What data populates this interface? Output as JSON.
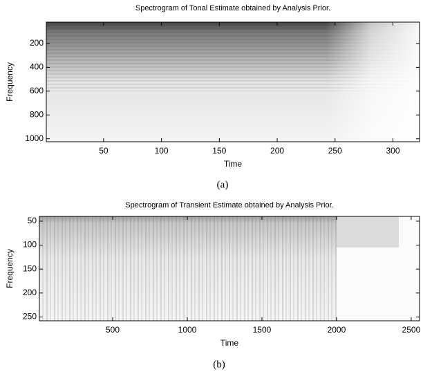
{
  "chart_data": [
    {
      "type": "spectrogram",
      "title": "Spectrogram of Tonal Estimate obtained by Analysis Prior.",
      "x_label": "Time",
      "y_label": "Frequency",
      "caption": "(a)",
      "xlim": [
        0.5,
        323
      ],
      "xticks": [
        50,
        100,
        150,
        200,
        250,
        300
      ],
      "ylim": [
        20,
        1025
      ],
      "yticks": [
        200,
        400,
        600,
        800,
        1000
      ],
      "y_reversed": true
    },
    {
      "type": "spectrogram",
      "title": "Spectrogram of Transient Estimate obtained by Analysis Prior.",
      "x_label": "Time",
      "y_label": "Frequency",
      "caption": "(b)",
      "xlim": [
        9,
        2556
      ],
      "xticks": [
        500,
        1000,
        1500,
        2000,
        2500
      ],
      "ylim": [
        40,
        258
      ],
      "yticks": [
        50,
        100,
        150,
        200,
        250
      ],
      "y_reversed": true
    }
  ]
}
